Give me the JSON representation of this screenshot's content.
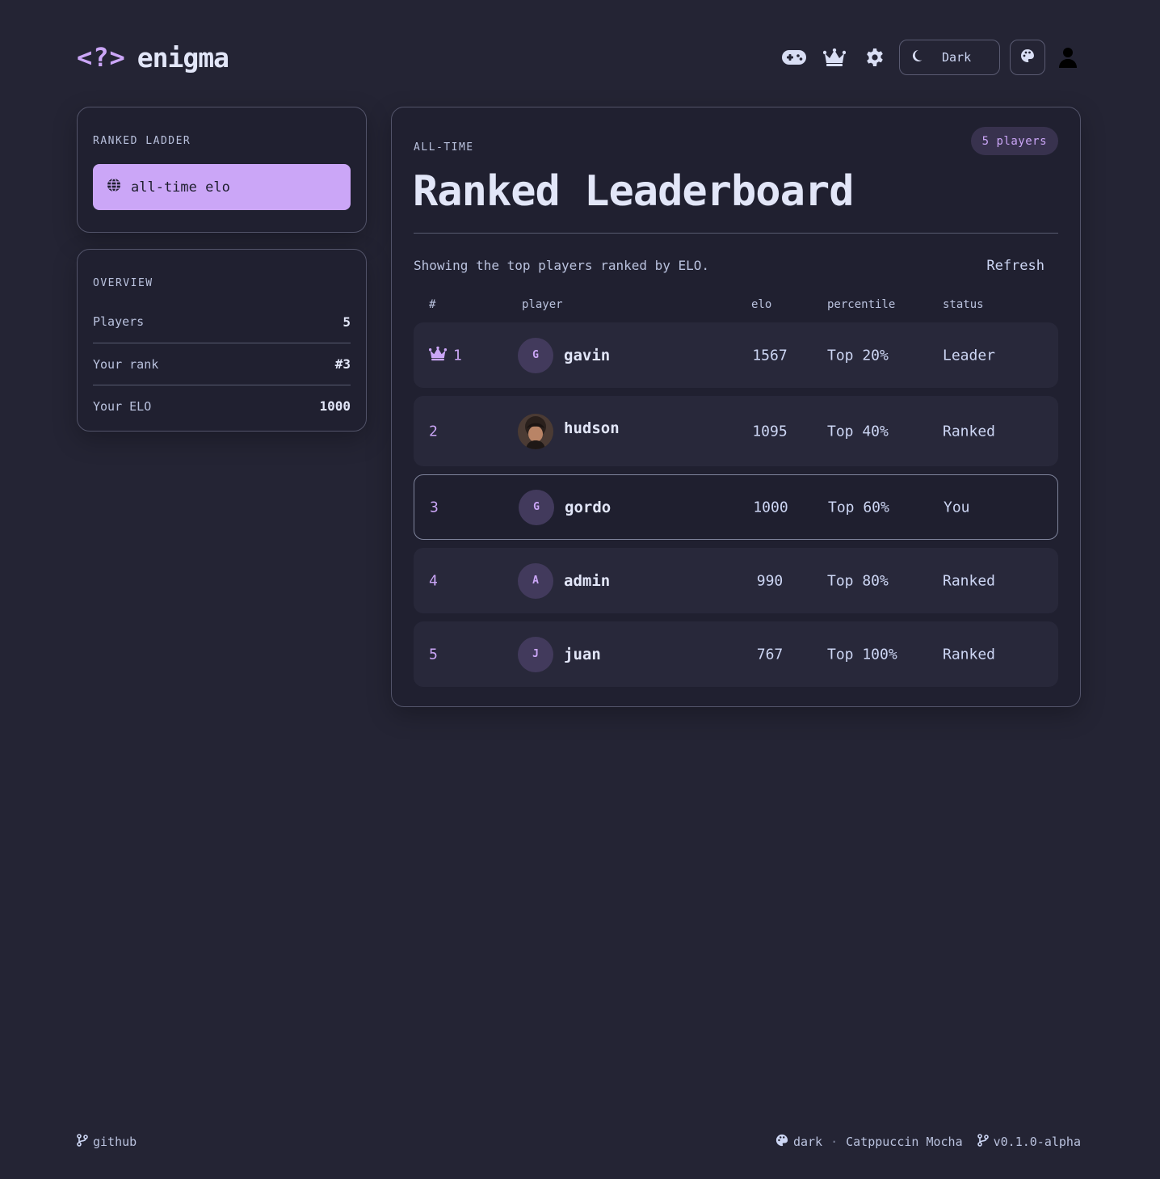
{
  "brand": {
    "logo": "<?>",
    "name": "enigma"
  },
  "nav": {
    "icons": [
      "gamepad-icon",
      "crown-icon",
      "gear-icon",
      "palette-icon",
      "user-icon"
    ],
    "theme_label": "Dark"
  },
  "sidebar": {
    "ladder_label": "RANKED LADDER",
    "ladder_button": "all-time elo",
    "overview_label": "OVERVIEW",
    "stats": [
      {
        "label": "Players",
        "value": "5"
      },
      {
        "label": "Your rank",
        "value": "#3"
      },
      {
        "label": "Your ELO",
        "value": "1000"
      }
    ]
  },
  "main": {
    "eyebrow": "ALL-TIME",
    "badge": "5 players",
    "title": "Ranked Leaderboard",
    "subtitle": "Showing the top players ranked by ELO.",
    "refresh": "Refresh",
    "columns": [
      "#",
      "player",
      "elo",
      "percentile",
      "status"
    ],
    "rows": [
      {
        "rank": "1",
        "initial": "G",
        "name": "gavin",
        "elo": "1567",
        "percentile": "Top 20%",
        "status": "Leader"
      },
      {
        "rank": "2",
        "initial": "",
        "name": "hudson",
        "elo": "1095",
        "percentile": "Top 40%",
        "status": "Ranked"
      },
      {
        "rank": "3",
        "initial": "G",
        "name": "gordo",
        "elo": "1000",
        "percentile": "Top 60%",
        "status": "You"
      },
      {
        "rank": "4",
        "initial": "A",
        "name": "admin",
        "elo": "990",
        "percentile": "Top 80%",
        "status": "Ranked"
      },
      {
        "rank": "5",
        "initial": "J",
        "name": "juan",
        "elo": "767",
        "percentile": "Top 100%",
        "status": "Ranked"
      }
    ]
  },
  "footer": {
    "github": "github",
    "theme": "dark",
    "separator": "·",
    "palette": "Catppuccin Mocha",
    "version": "v0.1.0-alpha"
  },
  "colors": {
    "accent": "#cba6f7",
    "background": "#242434",
    "card": "#202030",
    "text": "#cdd6f4"
  }
}
